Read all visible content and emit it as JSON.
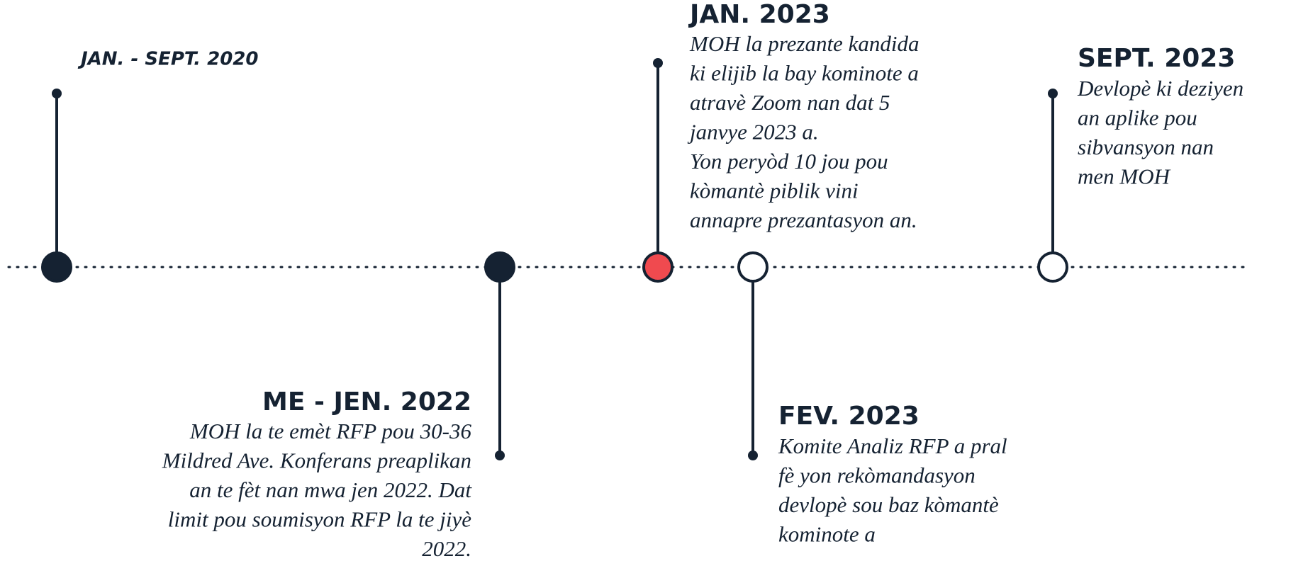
{
  "events": [
    {
      "date": "JAN. - SEPT. 2020",
      "lines": []
    },
    {
      "date": "ME - JEN. 2022",
      "lines": [
        "MOH la te emèt RFP pou 30-36",
        "Mildred Ave. Konferans preaplikan",
        "an te fèt nan mwa jen 2022. Dat",
        "limit pou soumisyon RFP la te jiyè",
        "2022."
      ]
    },
    {
      "date": "JAN. 2023",
      "lines": [
        "MOH la prezante kandida",
        "ki elijib la bay kominote a",
        "atravè Zoom nan dat 5",
        "janvye 2023 a.",
        "Yon peryòd 10 jou pou",
        "kòmantè piblik vini",
        "annapre prezantasyon an."
      ]
    },
    {
      "date": "FEV. 2023",
      "lines": [
        "Komite Analiz RFP a pral",
        "fè yon rekòmandasyon",
        "devlopè sou baz kòmantè",
        "kominote a"
      ]
    },
    {
      "date": "SEPT. 2023",
      "lines": [
        "Devlopè ki deziyen",
        "an aplike pou",
        "sibvansyon nan",
        "men MOH"
      ]
    }
  ]
}
